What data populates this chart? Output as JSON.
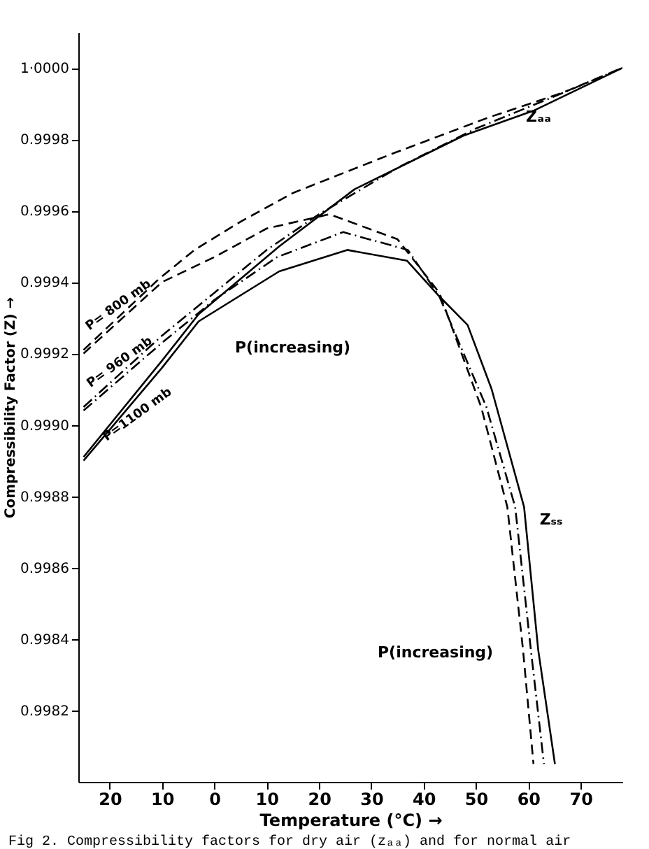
{
  "chart_data": {
    "type": "line",
    "xlabel": "Temperature (°C) →",
    "ylabel": "Compressibility Factor (Z) →",
    "xlim": [
      -26,
      78
    ],
    "ylim": [
      0.998,
      1.0001
    ],
    "xticks": [
      {
        "value": -20,
        "label": "20"
      },
      {
        "value": -10,
        "label": "10"
      },
      0,
      10,
      20,
      30,
      40,
      50,
      60,
      70
    ],
    "yticks": [
      0.9982,
      0.9984,
      0.9986,
      0.9988,
      {
        "value": 0.999,
        "label": "0.9990"
      },
      0.9992,
      0.9994,
      0.9996,
      0.9998,
      {
        "value": 1.0,
        "label": "1·0000"
      }
    ],
    "grid": false,
    "legend": false,
    "marker": "none",
    "series": [
      {
        "name": "P= 800 mb",
        "color": "#000000",
        "line_style": "dashed",
        "x": [
          -25,
          -10.5,
          -3.8,
          5.1,
          15.1,
          34.1,
          52.2,
          66.5,
          78
        ],
        "values": [
          0.99921,
          0.99941,
          0.99949,
          0.99957,
          0.99965,
          0.99976,
          0.99986,
          0.99993,
          1.0
        ]
      },
      {
        "name": "P= 960 mb",
        "color": "#000000",
        "line_style": "dotted",
        "x": [
          -25,
          -10,
          0,
          10,
          20,
          35,
          50,
          65,
          78
        ],
        "values": [
          0.99905,
          0.99925,
          0.99937,
          0.99949,
          0.99959,
          0.99972,
          0.99983,
          0.99992,
          1.0
        ]
      },
      {
        "name": "P=1100 mb",
        "color": "#000000",
        "line_style": "solid",
        "x": [
          -25,
          -10,
          -3,
          12.4,
          26.8,
          47.6,
          61,
          78
        ],
        "values": [
          0.99891,
          0.99918,
          0.99931,
          0.9995,
          0.99966,
          0.99981,
          0.99988,
          1.0
        ]
      },
      {
        "color": "#000000",
        "line_style": "dashed",
        "x": [
          -25,
          -10,
          0,
          10,
          22,
          35,
          43,
          51,
          56,
          59,
          61
        ],
        "values": [
          0.9992,
          0.9994,
          0.99947,
          0.99955,
          0.99959,
          0.99952,
          0.99937,
          0.99905,
          0.99877,
          0.99837,
          0.99805
        ]
      },
      {
        "color": "#000000",
        "line_style": "dotted",
        "x": [
          -25,
          -10,
          0,
          12,
          24.6,
          37,
          43,
          52,
          57.5,
          60.5,
          63
        ],
        "values": [
          0.99904,
          0.99923,
          0.99935,
          0.99947,
          0.99954,
          0.99949,
          0.99936,
          0.99905,
          0.99877,
          0.99837,
          0.99805
        ]
      },
      {
        "color": "#000000",
        "line_style": "solid",
        "x": [
          -25,
          -10,
          -3,
          12.4,
          25.4,
          36.8,
          43,
          48.4,
          53,
          59.2,
          61.9,
          65.1
        ],
        "values": [
          0.9989,
          0.99916,
          0.99929,
          0.99943,
          0.99949,
          0.99946,
          0.99936,
          0.99928,
          0.9991,
          0.99877,
          0.99837,
          0.99805
        ]
      }
    ],
    "annotations": [
      "Zₐₐ",
      "Zₛₛ",
      "P(increasing)",
      "P(increasing)",
      "Fig 2. Compressibility factors for dry air (zₐₐ) and for normal air"
    ]
  }
}
